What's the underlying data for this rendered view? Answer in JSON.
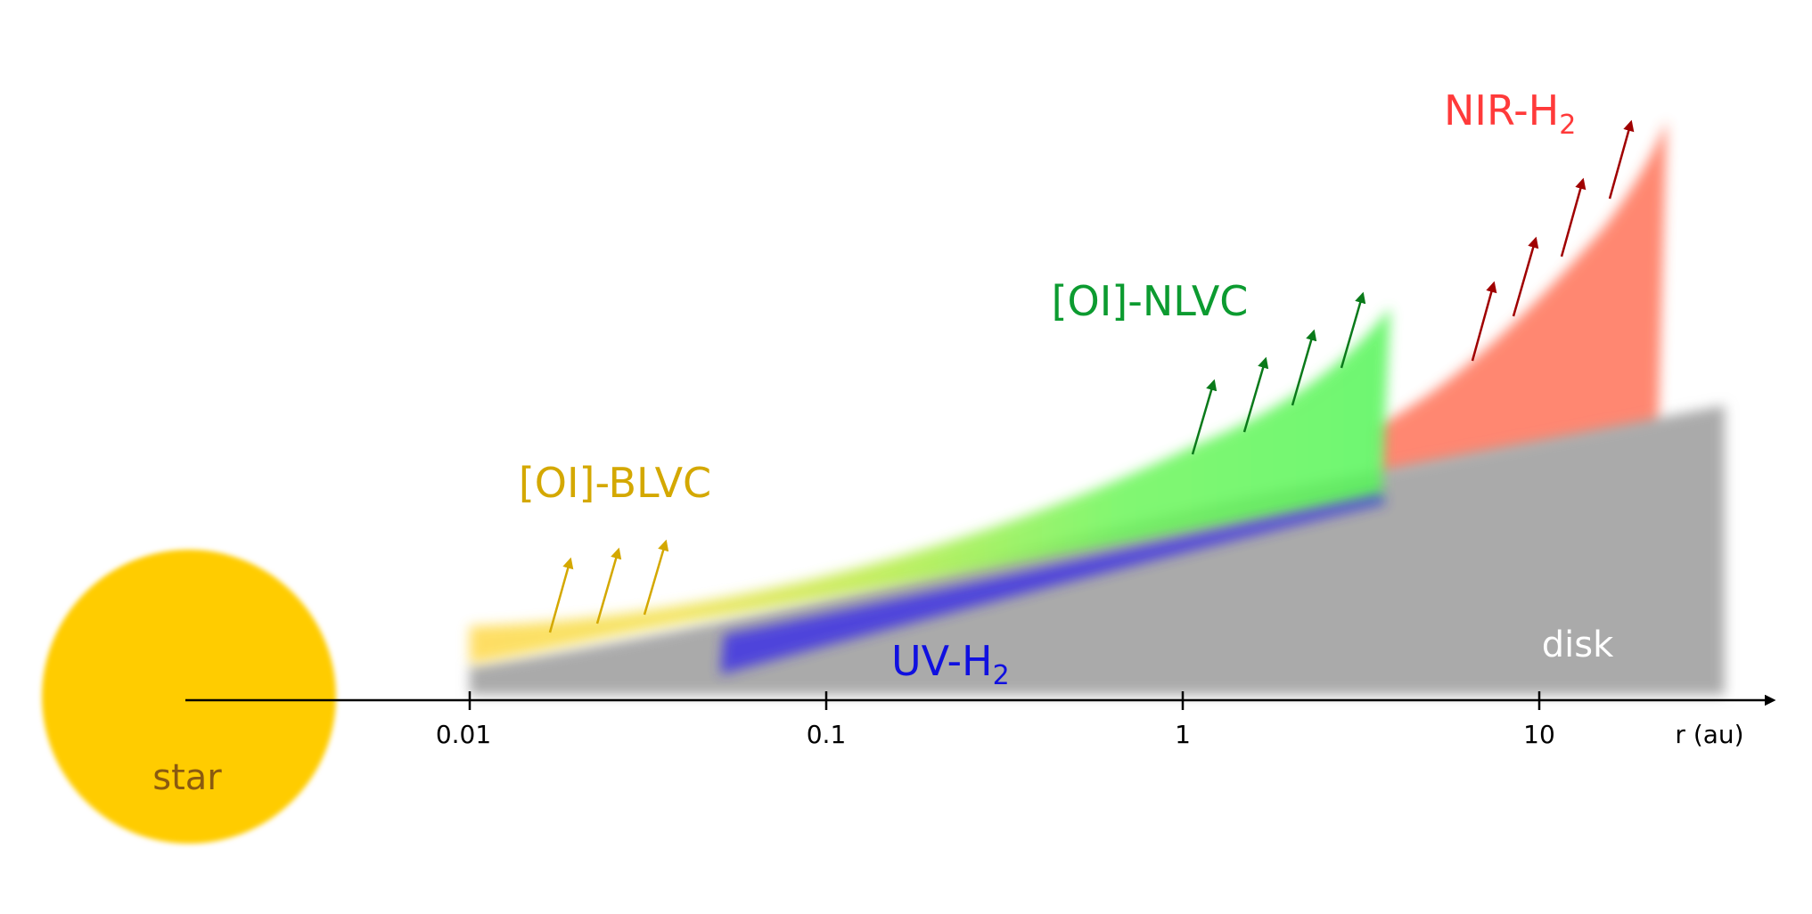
{
  "diagram": {
    "star_label": "star",
    "disk_label": "disk",
    "axis": {
      "unit_label": "r (au)",
      "ticks": [
        "0.01",
        "0.1",
        "1",
        "10"
      ]
    },
    "regions": {
      "oi_blvc": {
        "prefix": "[OI]-BLVC",
        "sub": ""
      },
      "oi_nlvc": {
        "prefix": "[OI]-NLVC",
        "sub": ""
      },
      "uv_h2": {
        "prefix": "UV-H",
        "sub": "2"
      },
      "nir_h2": {
        "prefix": "NIR-H",
        "sub": "2"
      }
    },
    "colors": {
      "star": "#ffcc00",
      "star_label": "#8a5a10",
      "disk": "#aaaaaa",
      "disk_label": "#ffffff",
      "oi_blvc": "#d4a800",
      "oi_nlvc": "#0c9b30",
      "uv_h2": "#1010e0",
      "nir_h2": "#ff3a3a",
      "nlvc_arrows": "#0a7a1a",
      "nir_arrows": "#a00000"
    }
  }
}
